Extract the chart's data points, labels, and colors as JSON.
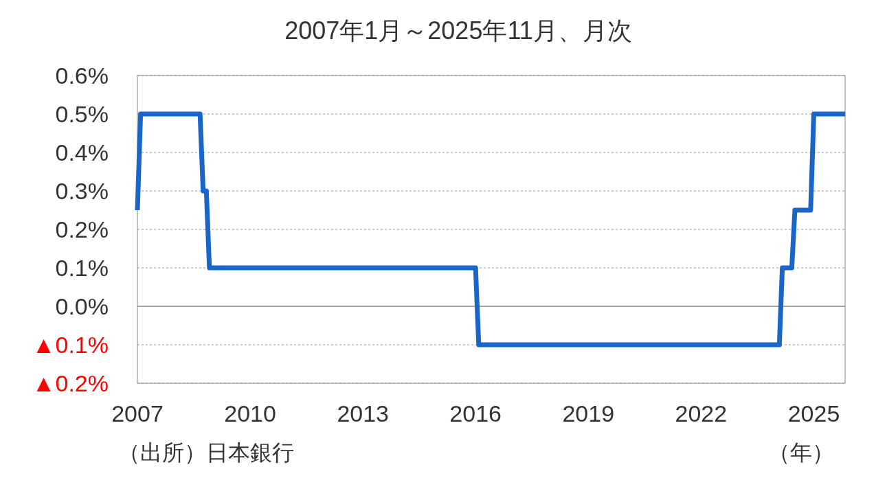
{
  "chart_data": {
    "type": "line",
    "title": "2007年1月～2025年11月、月次",
    "xlabel": "（年）",
    "annotations": [
      "（出所）日本銀行"
    ],
    "x": [
      "2007-01",
      "2007-02",
      "2008-09",
      "2008-10",
      "2008-11",
      "2008-12",
      "2016-01",
      "2016-02",
      "2024-02",
      "2024-03",
      "2024-06",
      "2024-07",
      "2024-12",
      "2025-01",
      "2025-11"
    ],
    "series": [
      {
        "color": "#1a66c8",
        "values": [
          0.25,
          0.5,
          0.5,
          0.3,
          0.3,
          0.1,
          0.1,
          -0.1,
          -0.1,
          0.1,
          0.1,
          0.25,
          0.25,
          0.5,
          0.5
        ]
      }
    ],
    "xlim": [
      "2007-01",
      "2025-11"
    ],
    "xticks": [
      "2007",
      "2010",
      "2013",
      "2016",
      "2019",
      "2022",
      "2025"
    ],
    "ylim": [
      -0.2,
      0.6
    ],
    "yticks": [
      {
        "value": 0.6,
        "label": "0.6%"
      },
      {
        "value": 0.5,
        "label": "0.5%"
      },
      {
        "value": 0.4,
        "label": "0.4%"
      },
      {
        "value": 0.3,
        "label": "0.3%"
      },
      {
        "value": 0.2,
        "label": "0.2%"
      },
      {
        "value": 0.1,
        "label": "0.1%"
      },
      {
        "value": 0,
        "label": "0.0%"
      },
      {
        "value": -0.1,
        "label": "▲0.1%"
      },
      {
        "value": -0.2,
        "label": "▲0.2%"
      }
    ],
    "grid": "y",
    "marker": "none",
    "line_style": "solid"
  }
}
